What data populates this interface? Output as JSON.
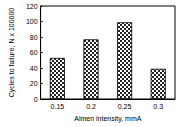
{
  "chart_data": {
    "type": "bar",
    "x_label": "Almen intensity, mmA",
    "y_label": "Cycles to failure, N x 100000",
    "categories": [
      "0.15",
      "0.2",
      "0.25",
      "0.3"
    ],
    "values": [
      53,
      77,
      99,
      39
    ],
    "color": "#222222",
    "ylim": [
      0,
      120
    ],
    "yticks": [
      0,
      20,
      40,
      60,
      80,
      100,
      120
    ],
    "grid": false
  }
}
